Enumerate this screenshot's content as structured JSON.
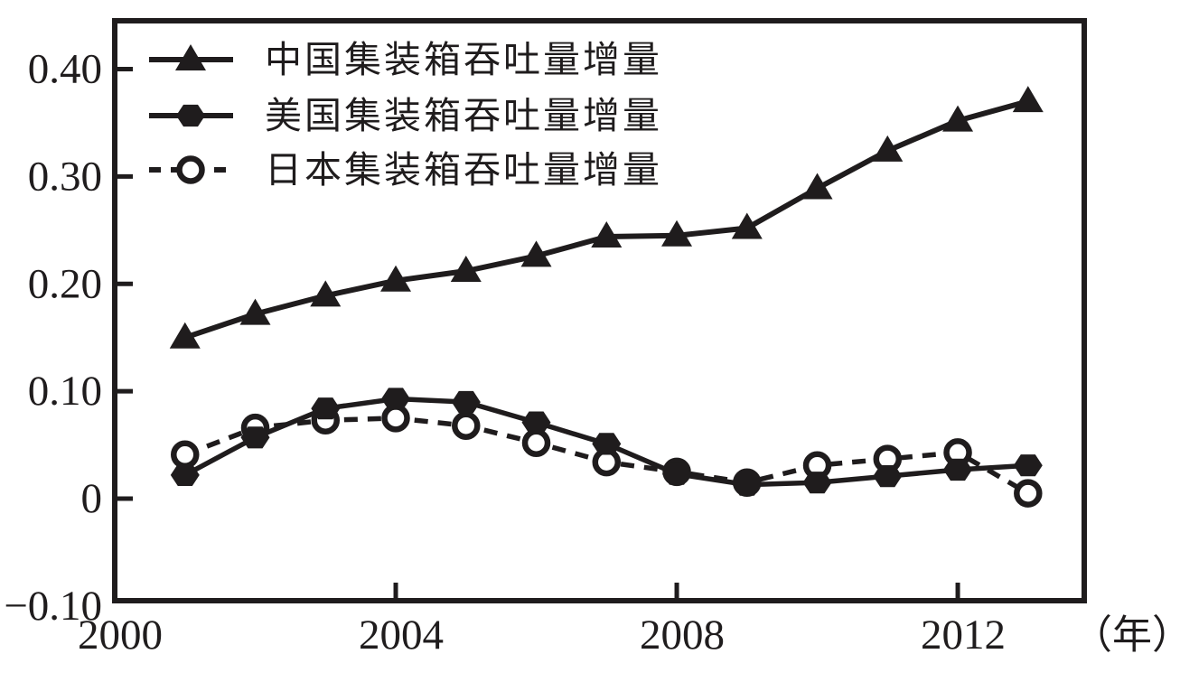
{
  "figure": {
    "background": "#ffffff",
    "ink_color": "#1f1c1d"
  },
  "legend": {
    "position": "top-left",
    "items": [
      {
        "label": "中国集装箱吞吐量增量",
        "marker": "filled-triangle",
        "line_style": "solid",
        "series": "china"
      },
      {
        "label": "美国集装箱吞吐量增量",
        "marker": "filled-hexagon",
        "line_style": "solid",
        "series": "usa"
      },
      {
        "label": "日本集装箱吞吐量增量",
        "marker": "open-circle",
        "line_style": "dashed",
        "series": "japan"
      }
    ]
  },
  "chart_data": {
    "type": "line",
    "title": "",
    "xlabel": "（年）",
    "ylabel": "",
    "x": [
      2001,
      2002,
      2003,
      2004,
      2005,
      2006,
      2007,
      2008,
      2009,
      2010,
      2011,
      2012,
      2013
    ],
    "series": [
      {
        "name": "中国集装箱吞吐量增量",
        "marker": "filled-triangle",
        "line_style": "solid",
        "values": [
          0.15,
          0.172,
          0.189,
          0.203,
          0.212,
          0.226,
          0.244,
          0.245,
          0.252,
          0.289,
          0.324,
          0.352,
          0.37
        ]
      },
      {
        "name": "美国集装箱吞吐量增量",
        "marker": "filled-hexagon",
        "line_style": "solid",
        "values": [
          0.022,
          0.057,
          0.084,
          0.093,
          0.09,
          0.071,
          0.051,
          0.023,
          0.013,
          0.015,
          0.021,
          0.027,
          0.031
        ]
      },
      {
        "name": "日本集装箱吞吐量增量",
        "marker": "open-circle",
        "line_style": "dashed",
        "values": [
          0.041,
          0.066,
          0.073,
          0.075,
          0.068,
          0.052,
          0.034,
          0.025,
          0.015,
          0.031,
          0.037,
          0.043,
          0.005
        ]
      }
    ],
    "xlim": [
      2000,
      2013.8
    ],
    "ylim": [
      -0.095,
      0.445
    ],
    "x_tick_marks": [
      2004,
      2008,
      2012
    ],
    "x_tick_labels": [
      {
        "value": 2000,
        "text": "2000"
      },
      {
        "value": 2004,
        "text": "2004"
      },
      {
        "value": 2008,
        "text": "2008"
      },
      {
        "value": 2012,
        "text": "2012"
      }
    ],
    "x_unit_label": "（年）",
    "y_tick_marks": [
      0,
      0.1,
      0.2,
      0.3,
      0.4
    ],
    "y_tick_labels": [
      {
        "value": -0.1,
        "text": "−0.10"
      },
      {
        "value": 0,
        "text": "0"
      },
      {
        "value": 0.1,
        "text": "0.10"
      },
      {
        "value": 0.2,
        "text": "0.20"
      },
      {
        "value": 0.3,
        "text": "0.30"
      },
      {
        "value": 0.4,
        "text": "0.40"
      }
    ],
    "grid": false,
    "legend_position": "top-left"
  }
}
